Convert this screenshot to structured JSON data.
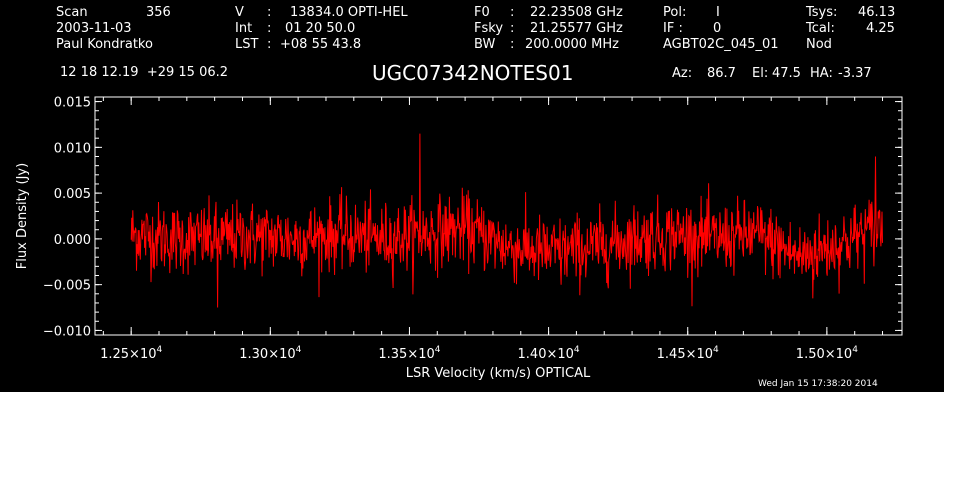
{
  "header": {
    "scan_label": "Scan",
    "scan_value": "356",
    "date": "2003-11-03",
    "observer": "Paul Kondratko",
    "v_label": "V",
    "v_sep": ":",
    "v_value": "13834.0 OPTI-HEL",
    "int_label": "Int",
    "int_sep": ":",
    "int_value": "01 20 50.0",
    "lst_label": "LST",
    "lst_sep": ":",
    "lst_value": "+08 55 43.8",
    "f0_label": "F0",
    "f0_sep": ":",
    "f0_value": "22.23508 GHz",
    "fsky_label": "Fsky",
    "fsky_sep": ":",
    "fsky_value": "21.25577 GHz",
    "bw_label": "BW",
    "bw_sep": ":",
    "bw_value": "200.0000 MHz",
    "pol_label": "Pol:",
    "pol_value": "I",
    "if_label": "IF :",
    "if_value": "0",
    "project": "AGBT02C_045_01",
    "tsys_label": "Tsys:",
    "tsys_value": "46.13",
    "tcal_label": "Tcal:",
    "tcal_value": "4.25",
    "mode": "Nod",
    "coords": "12 18 12.19  +29 15 06.2",
    "source": "UGC07342NOTES01",
    "az_label": "Az:",
    "az_value": "86.7",
    "el_label": "El:",
    "el_value": "47.5",
    "ha_label": "HA:",
    "ha_value": "-3.37"
  },
  "footer": {
    "timestamp": "Wed Jan 15 17:38:20 2014"
  },
  "colors": {
    "background": "#000000",
    "axes": "#ffffff",
    "series": "#ff0000"
  },
  "chart_data": {
    "type": "line",
    "title": "UGC07342NOTES01",
    "xlabel": "LSR Velocity (km/s) OPTICAL",
    "ylabel": "Flux Density (Jy)",
    "xlim": [
      12370,
      15270
    ],
    "ylim": [
      -0.0105,
      0.0155
    ],
    "x_ticks": [
      {
        "value": 12500,
        "mantissa": "1.25",
        "exponent": "4"
      },
      {
        "value": 13000,
        "mantissa": "1.30",
        "exponent": "4"
      },
      {
        "value": 13500,
        "mantissa": "1.35",
        "exponent": "4"
      },
      {
        "value": 14000,
        "mantissa": "1.40",
        "exponent": "4"
      },
      {
        "value": 14500,
        "mantissa": "1.45",
        "exponent": "4"
      },
      {
        "value": 15000,
        "mantissa": "1.50",
        "exponent": "4"
      }
    ],
    "x_tick_times": "×10",
    "y_ticks": [
      {
        "value": 0.015,
        "label": "0.015"
      },
      {
        "value": 0.01,
        "label": "0.010"
      },
      {
        "value": 0.005,
        "label": "0.005"
      },
      {
        "value": 0.0,
        "label": "0.000"
      },
      {
        "value": -0.005,
        "label": "−0.005"
      },
      {
        "value": -0.01,
        "label": "−0.010"
      }
    ],
    "grid": false,
    "series": [
      {
        "x_range": [
          12500,
          15200
        ],
        "baseline": {
          "x": [
            12500,
            12650,
            12800,
            12950,
            13100,
            13250,
            13400,
            13550,
            13700,
            13850,
            14000,
            14150,
            14300,
            14450,
            14600,
            14750,
            14900,
            15050,
            15200
          ],
          "y": [
            0.0005,
            0.0,
            0.0,
            0.0003,
            0.0,
            0.0005,
            0.0,
            0.0005,
            0.0012,
            -0.0008,
            -0.0015,
            -0.001,
            0.0,
            0.0005,
            0.0,
            0.0005,
            -0.002,
            -0.0005,
            0.0015
          ]
        },
        "spikes": [
          {
            "x": 13538,
            "y": 0.0115
          },
          {
            "x": 12810,
            "y": -0.0075
          },
          {
            "x": 15175,
            "y": 0.009
          },
          {
            "x": 14045,
            "y": -0.005
          },
          {
            "x": 14950,
            "y": -0.0065
          }
        ]
      }
    ]
  }
}
